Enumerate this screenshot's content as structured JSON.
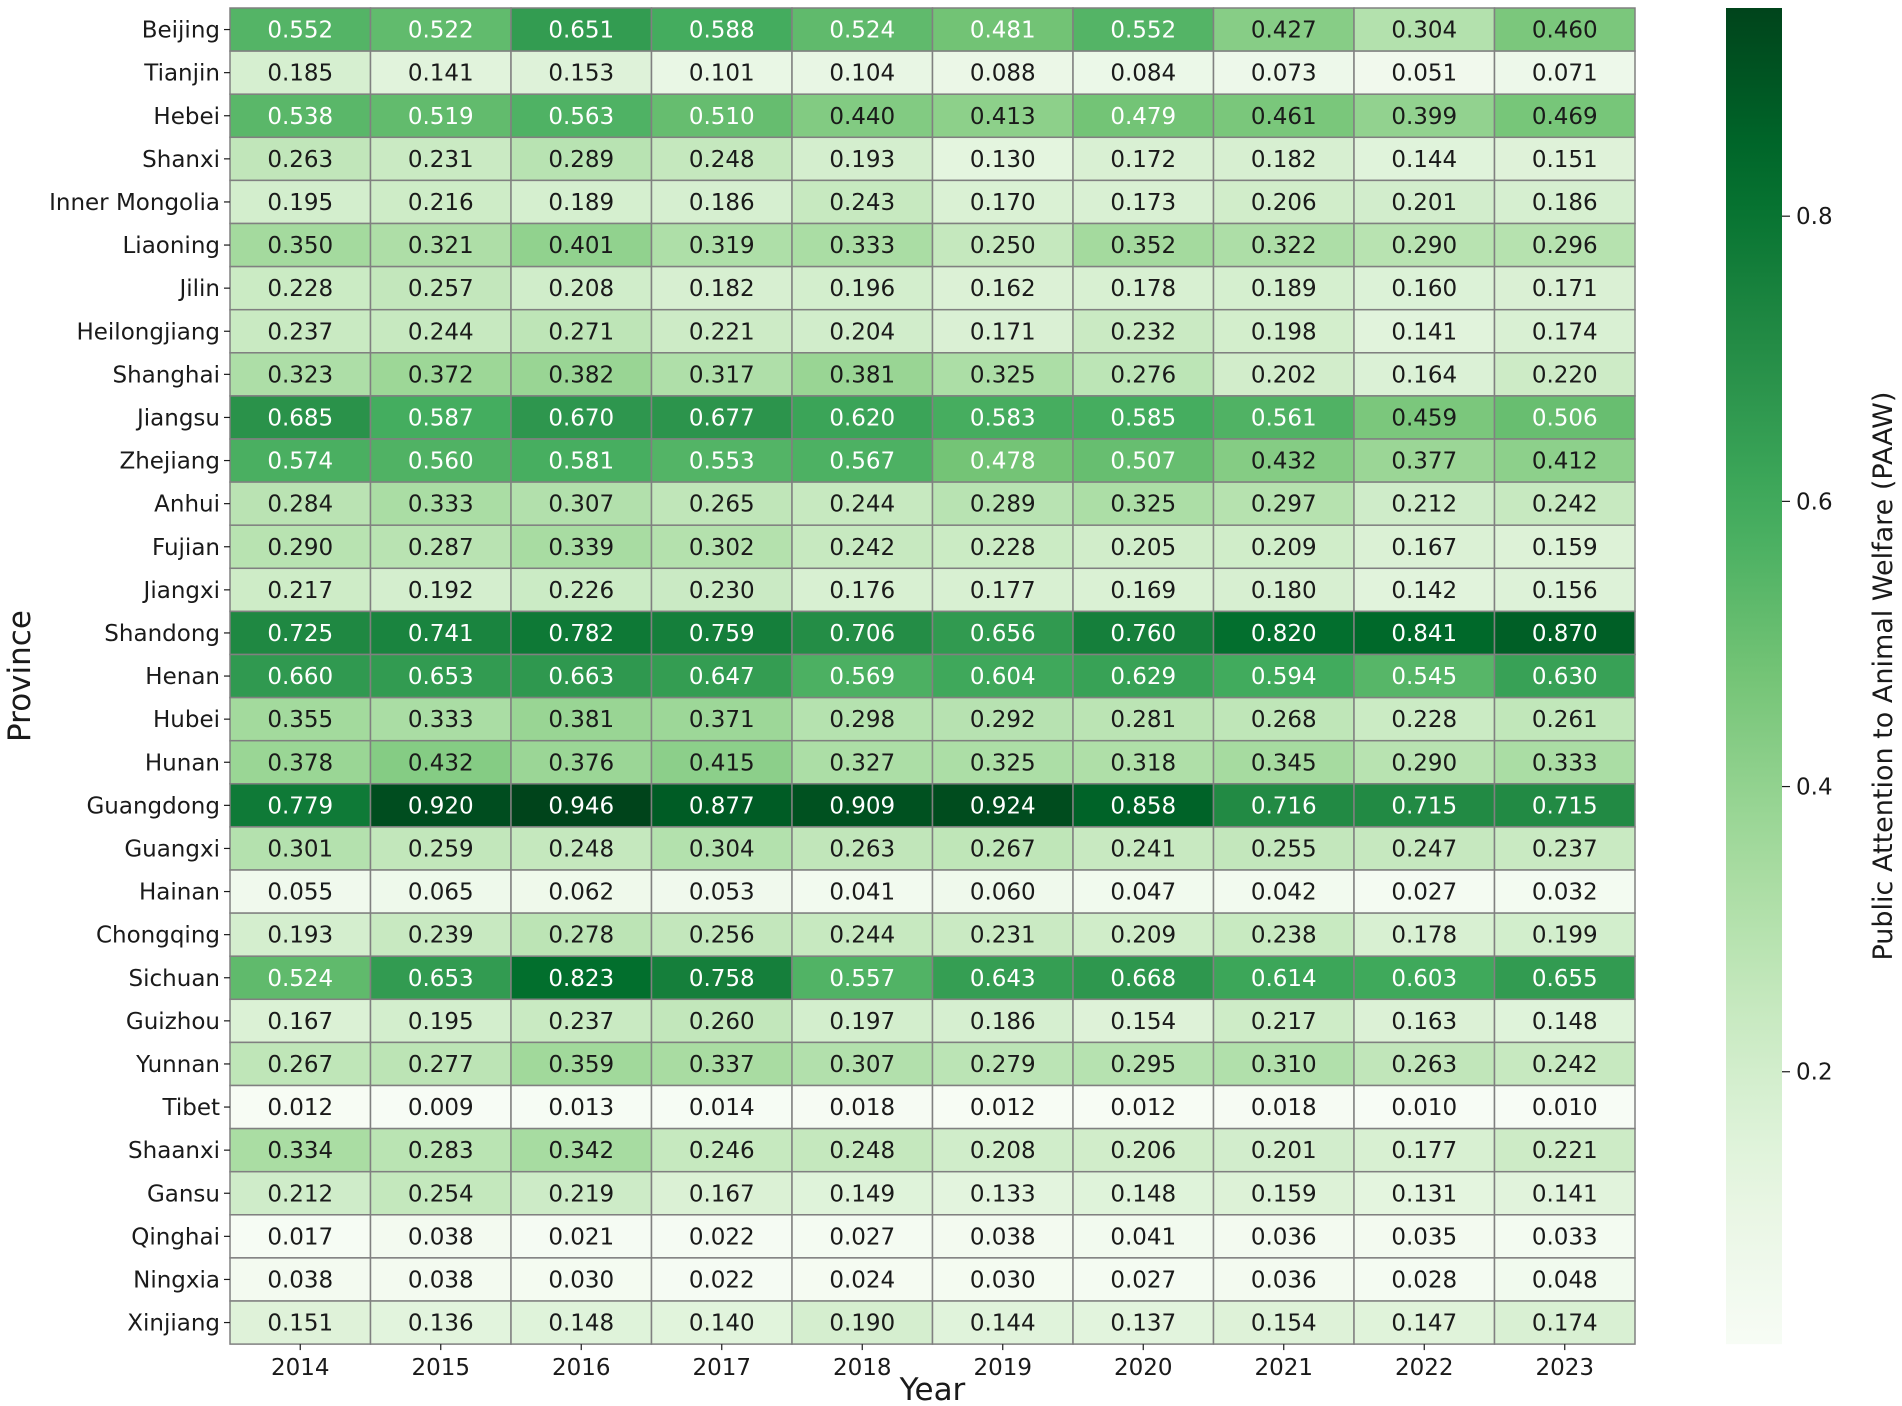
{
  "chart_data": {
    "type": "heatmap",
    "xlabel": "Year",
    "ylabel": "Province",
    "colorbar_label": "Public Attention to Animal Welfare (PAAW)",
    "colorbar_ticks": [
      "0.2",
      "0.4",
      "0.6",
      "0.8"
    ],
    "color_range": [
      0.009,
      0.946
    ],
    "colormap": "Greens",
    "cell_border_color": "#808080",
    "columns": [
      "2014",
      "2015",
      "2016",
      "2017",
      "2018",
      "2019",
      "2020",
      "2021",
      "2022",
      "2023"
    ],
    "rows": [
      "Beijing",
      "Tianjin",
      "Hebei",
      "Shanxi",
      "Inner Mongolia",
      "Liaoning",
      "Jilin",
      "Heilongjiang",
      "Shanghai",
      "Jiangsu",
      "Zhejiang",
      "Anhui",
      "Fujian",
      "Jiangxi",
      "Shandong",
      "Henan",
      "Hubei",
      "Hunan",
      "Guangdong",
      "Guangxi",
      "Hainan",
      "Chongqing",
      "Sichuan",
      "Guizhou",
      "Yunnan",
      "Tibet",
      "Shaanxi",
      "Gansu",
      "Qinghai",
      "Ningxia",
      "Xinjiang"
    ],
    "values": [
      [
        "0.552",
        "0.522",
        "0.651",
        "0.588",
        "0.524",
        "0.481",
        "0.552",
        "0.427",
        "0.304",
        "0.460"
      ],
      [
        "0.185",
        "0.141",
        "0.153",
        "0.101",
        "0.104",
        "0.088",
        "0.084",
        "0.073",
        "0.051",
        "0.071"
      ],
      [
        "0.538",
        "0.519",
        "0.563",
        "0.510",
        "0.440",
        "0.413",
        "0.479",
        "0.461",
        "0.399",
        "0.469"
      ],
      [
        "0.263",
        "0.231",
        "0.289",
        "0.248",
        "0.193",
        "0.130",
        "0.172",
        "0.182",
        "0.144",
        "0.151"
      ],
      [
        "0.195",
        "0.216",
        "0.189",
        "0.186",
        "0.243",
        "0.170",
        "0.173",
        "0.206",
        "0.201",
        "0.186"
      ],
      [
        "0.350",
        "0.321",
        "0.401",
        "0.319",
        "0.333",
        "0.250",
        "0.352",
        "0.322",
        "0.290",
        "0.296"
      ],
      [
        "0.228",
        "0.257",
        "0.208",
        "0.182",
        "0.196",
        "0.162",
        "0.178",
        "0.189",
        "0.160",
        "0.171"
      ],
      [
        "0.237",
        "0.244",
        "0.271",
        "0.221",
        "0.204",
        "0.171",
        "0.232",
        "0.198",
        "0.141",
        "0.174"
      ],
      [
        "0.323",
        "0.372",
        "0.382",
        "0.317",
        "0.381",
        "0.325",
        "0.276",
        "0.202",
        "0.164",
        "0.220"
      ],
      [
        "0.685",
        "0.587",
        "0.670",
        "0.677",
        "0.620",
        "0.583",
        "0.585",
        "0.561",
        "0.459",
        "0.506"
      ],
      [
        "0.574",
        "0.560",
        "0.581",
        "0.553",
        "0.567",
        "0.478",
        "0.507",
        "0.432",
        "0.377",
        "0.412"
      ],
      [
        "0.284",
        "0.333",
        "0.307",
        "0.265",
        "0.244",
        "0.289",
        "0.325",
        "0.297",
        "0.212",
        "0.242"
      ],
      [
        "0.290",
        "0.287",
        "0.339",
        "0.302",
        "0.242",
        "0.228",
        "0.205",
        "0.209",
        "0.167",
        "0.159"
      ],
      [
        "0.217",
        "0.192",
        "0.226",
        "0.230",
        "0.176",
        "0.177",
        "0.169",
        "0.180",
        "0.142",
        "0.156"
      ],
      [
        "0.725",
        "0.741",
        "0.782",
        "0.759",
        "0.706",
        "0.656",
        "0.760",
        "0.820",
        "0.841",
        "0.870"
      ],
      [
        "0.660",
        "0.653",
        "0.663",
        "0.647",
        "0.569",
        "0.604",
        "0.629",
        "0.594",
        "0.545",
        "0.630"
      ],
      [
        "0.355",
        "0.333",
        "0.381",
        "0.371",
        "0.298",
        "0.292",
        "0.281",
        "0.268",
        "0.228",
        "0.261"
      ],
      [
        "0.378",
        "0.432",
        "0.376",
        "0.415",
        "0.327",
        "0.325",
        "0.318",
        "0.345",
        "0.290",
        "0.333"
      ],
      [
        "0.779",
        "0.920",
        "0.946",
        "0.877",
        "0.909",
        "0.924",
        "0.858",
        "0.716",
        "0.715",
        "0.715"
      ],
      [
        "0.301",
        "0.259",
        "0.248",
        "0.304",
        "0.263",
        "0.267",
        "0.241",
        "0.255",
        "0.247",
        "0.237"
      ],
      [
        "0.055",
        "0.065",
        "0.062",
        "0.053",
        "0.041",
        "0.060",
        "0.047",
        "0.042",
        "0.027",
        "0.032"
      ],
      [
        "0.193",
        "0.239",
        "0.278",
        "0.256",
        "0.244",
        "0.231",
        "0.209",
        "0.238",
        "0.178",
        "0.199"
      ],
      [
        "0.524",
        "0.653",
        "0.823",
        "0.758",
        "0.557",
        "0.643",
        "0.668",
        "0.614",
        "0.603",
        "0.655"
      ],
      [
        "0.167",
        "0.195",
        "0.237",
        "0.260",
        "0.197",
        "0.186",
        "0.154",
        "0.217",
        "0.163",
        "0.148"
      ],
      [
        "0.267",
        "0.277",
        "0.359",
        "0.337",
        "0.307",
        "0.279",
        "0.295",
        "0.310",
        "0.263",
        "0.242"
      ],
      [
        "0.012",
        "0.009",
        "0.013",
        "0.014",
        "0.018",
        "0.012",
        "0.012",
        "0.018",
        "0.010",
        "0.010"
      ],
      [
        "0.334",
        "0.283",
        "0.342",
        "0.246",
        "0.248",
        "0.208",
        "0.206",
        "0.201",
        "0.177",
        "0.221"
      ],
      [
        "0.212",
        "0.254",
        "0.219",
        "0.167",
        "0.149",
        "0.133",
        "0.148",
        "0.159",
        "0.131",
        "0.141"
      ],
      [
        "0.017",
        "0.038",
        "0.021",
        "0.022",
        "0.027",
        "0.038",
        "0.041",
        "0.036",
        "0.035",
        "0.033"
      ],
      [
        "0.038",
        "0.038",
        "0.030",
        "0.022",
        "0.024",
        "0.030",
        "0.027",
        "0.036",
        "0.028",
        "0.048"
      ],
      [
        "0.151",
        "0.136",
        "0.148",
        "0.140",
        "0.190",
        "0.144",
        "0.137",
        "0.154",
        "0.147",
        "0.174"
      ]
    ]
  }
}
